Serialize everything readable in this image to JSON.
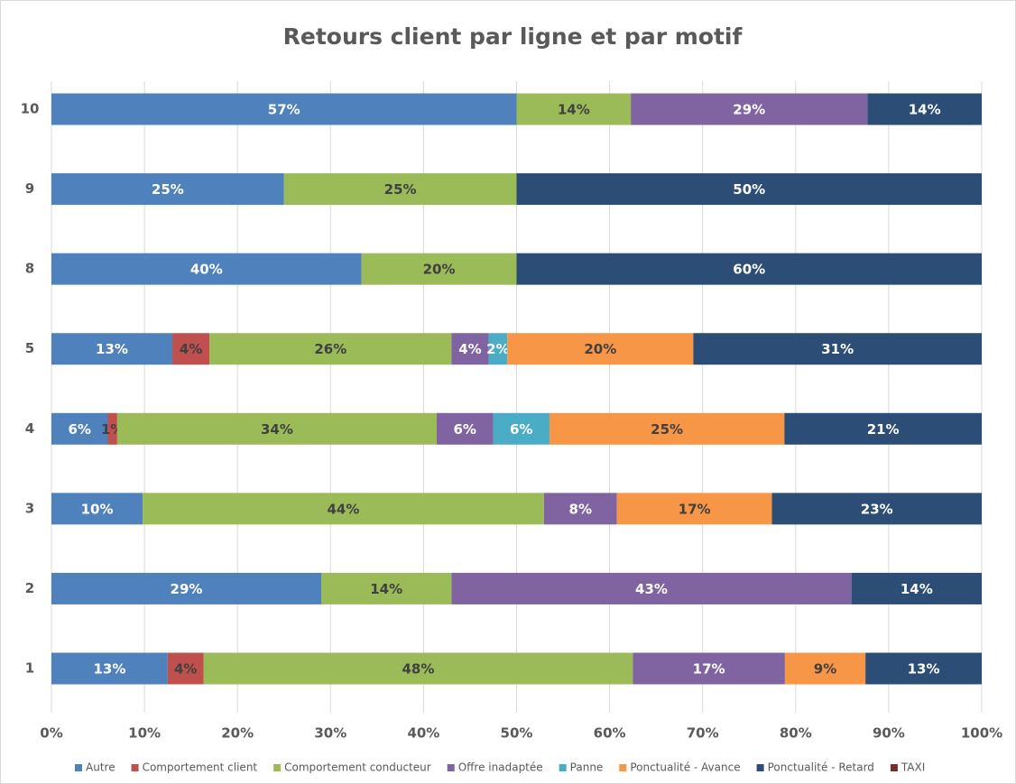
{
  "chart_data": {
    "type": "bar",
    "orientation": "horizontal",
    "stacked": "percent",
    "title": "Retours client par ligne et par motif",
    "categories": [
      "1",
      "2",
      "3",
      "4",
      "5",
      "8",
      "9",
      "10"
    ],
    "series": [
      {
        "name": "Autre",
        "color": "#4f81bd",
        "values": [
          13,
          29,
          10,
          6,
          13,
          40,
          25,
          57
        ],
        "value_labels": [
          "13%",
          "29%",
          "10%",
          "6%",
          "13%",
          "40%",
          "25%",
          "57%"
        ]
      },
      {
        "name": "Comportement client",
        "color": "#c0504d",
        "values": [
          4,
          null,
          null,
          1,
          4,
          null,
          null,
          null
        ],
        "value_labels": [
          "4%",
          null,
          null,
          "1%",
          "4%",
          null,
          null,
          null
        ]
      },
      {
        "name": "Comportement conducteur",
        "color": "#9bbb59",
        "values": [
          48,
          14,
          44,
          34,
          26,
          20,
          25,
          14
        ],
        "value_labels": [
          "48%",
          "14%",
          "44%",
          "34%",
          "26%",
          "20%",
          "25%",
          "14%"
        ]
      },
      {
        "name": "Offre inadaptée",
        "color": "#8064a2",
        "values": [
          17,
          43,
          8,
          6,
          4,
          null,
          null,
          29
        ],
        "value_labels": [
          "17%",
          "43%",
          "8%",
          "6%",
          "4%",
          null,
          null,
          "29%"
        ]
      },
      {
        "name": "Panne",
        "color": "#4bacc6",
        "values": [
          null,
          null,
          null,
          6,
          2,
          null,
          null,
          null
        ],
        "value_labels": [
          null,
          null,
          null,
          "6%",
          "2%",
          null,
          null,
          null
        ]
      },
      {
        "name": "Ponctualité - Avance",
        "color": "#f79646",
        "values": [
          9,
          null,
          17,
          25,
          20,
          null,
          null,
          null
        ],
        "value_labels": [
          "9%",
          null,
          "17%",
          "25%",
          "20%",
          null,
          null,
          null
        ]
      },
      {
        "name": "Ponctualité - Retard",
        "color": "#2c4d75",
        "values": [
          13,
          14,
          23,
          21,
          31,
          60,
          50,
          14
        ],
        "value_labels": [
          "13%",
          "14%",
          "23%",
          "21%",
          "31%",
          "60%",
          "50%",
          "14%"
        ]
      },
      {
        "name": "TAXI",
        "color": "#772c2a",
        "values": [
          null,
          null,
          null,
          null,
          null,
          null,
          null,
          null
        ]
      }
    ],
    "xlim": [
      0,
      100
    ],
    "xticks": [
      {
        "value": 0,
        "label": "0%"
      },
      {
        "value": 10,
        "label": "10%"
      },
      {
        "value": 20,
        "label": "20%"
      },
      {
        "value": 30,
        "label": "30%"
      },
      {
        "value": 40,
        "label": "40%"
      },
      {
        "value": 50,
        "label": "50%"
      },
      {
        "value": 60,
        "label": "60%"
      },
      {
        "value": 70,
        "label": "70%"
      },
      {
        "value": 80,
        "label": "80%"
      },
      {
        "value": 90,
        "label": "90%"
      },
      {
        "value": 100,
        "label": "100%"
      }
    ],
    "grid": true,
    "legend": "bottom"
  }
}
